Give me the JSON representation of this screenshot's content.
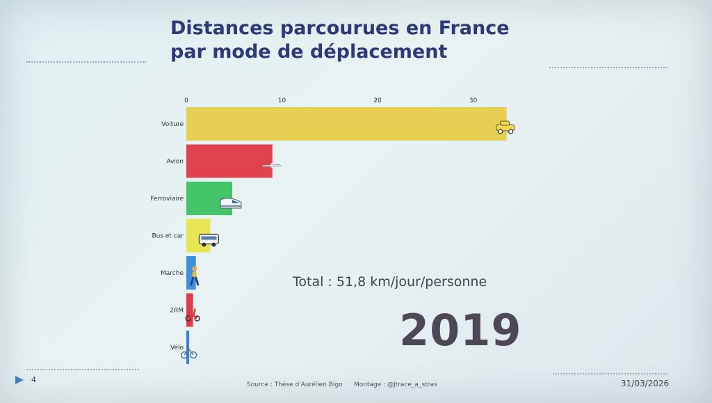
{
  "title_line1": "Distances parcourues en France",
  "title_line2": "par mode de déplacement",
  "total_text": "Total : 51,8 km/jour/personne",
  "year": "2019",
  "footer": {
    "page_number": "4",
    "source": "Source : Thèse d'Aurélien Bigo",
    "montage": "Montage : @Jtrace_a_stras",
    "date": "31/03/2026"
  },
  "chart_data": {
    "type": "bar",
    "orientation": "horizontal",
    "title": "Distances parcourues en France par mode de déplacement",
    "categories": [
      "Voiture",
      "Avion",
      "Ferroviaire",
      "Bus et car",
      "Marche",
      "2RM",
      "Vélo"
    ],
    "values": [
      33.5,
      9,
      4.8,
      2.5,
      1,
      0.7,
      0.3
    ],
    "colors": [
      "#e6cf52",
      "#e0424f",
      "#45c56a",
      "#e8e553",
      "#3f8fe0",
      "#de3b4c",
      "#3f7fd4"
    ],
    "icons": [
      "car-icon",
      "plane-icon",
      "train-icon",
      "bus-icon",
      "walker-icon",
      "scooter-icon",
      "bicycle-icon"
    ],
    "xticks": [
      0,
      10,
      20,
      30
    ],
    "xlim": [
      0,
      34
    ],
    "axis_position": "top",
    "grid": false
  },
  "colors": {
    "title": "#2e3a78",
    "accent": "#2e3a78",
    "year": "#4d4756"
  }
}
